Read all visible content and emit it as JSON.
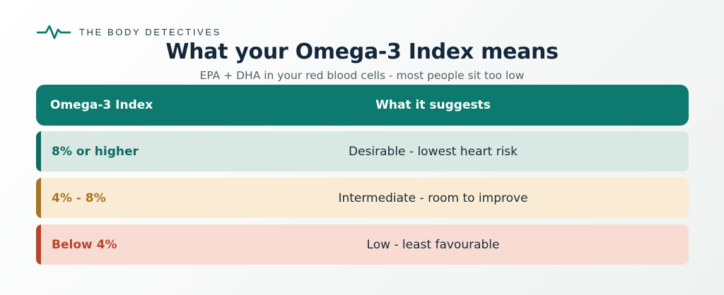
{
  "brand": {
    "name": "THE BODY DETECTIVES",
    "icon": "pulse-line-icon",
    "color": "#0d7a6f"
  },
  "title": "What your Omega-3 Index means",
  "subtitle": "EPA + DHA in your red blood cells - most people sit too low",
  "table": {
    "headers": [
      "Omega-3 Index",
      "What it suggests"
    ],
    "header_color": "#0d7a6f",
    "rows": [
      {
        "range": "8% or higher",
        "meaning": "Desirable - lowest heart risk",
        "accent": "#0d6b60",
        "background": "#dae8e4"
      },
      {
        "range": "4% - 8%",
        "meaning": "Intermediate - room to improve",
        "accent": "#a87425",
        "background": "#faecd4"
      },
      {
        "range": "Below 4%",
        "meaning": "Low - least favourable",
        "accent": "#b5452e",
        "background": "#f8dcd3"
      }
    ]
  }
}
